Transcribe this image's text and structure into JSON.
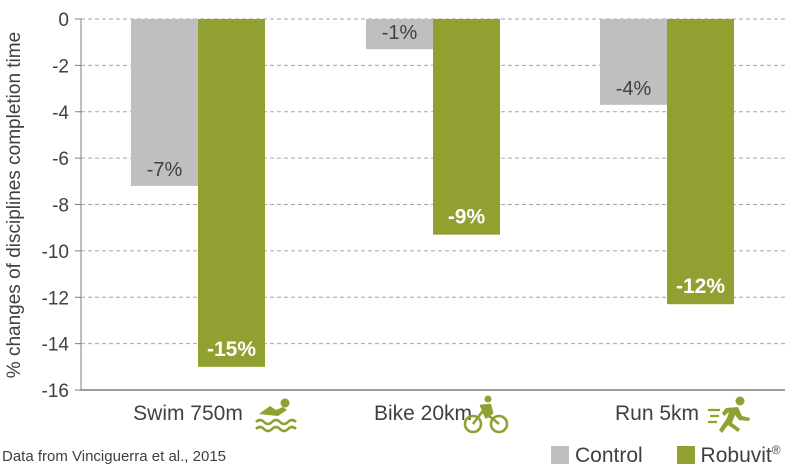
{
  "chart_data": {
    "type": "bar",
    "ylabel": "% changes of disciplines completion time",
    "ylim": [
      -16,
      0
    ],
    "yticks": [
      0,
      -2,
      -4,
      -6,
      -8,
      -10,
      -12,
      -14,
      -16
    ],
    "grid": true,
    "categories": [
      "Swim 750m",
      "Bike 20km",
      "Run 5km"
    ],
    "category_icons": [
      "swimmer-icon",
      "cyclist-icon",
      "runner-icon"
    ],
    "series": [
      {
        "name": "Control",
        "color": "#bfbfbf",
        "values": [
          -7.2,
          -1.3,
          -3.7
        ],
        "labels": [
          "-7%",
          "-1%",
          "-4%"
        ]
      },
      {
        "name": "Robuvit",
        "name_suffix": "®",
        "color": "#92a032",
        "values": [
          -15.0,
          -9.3,
          -12.3
        ],
        "labels": [
          "-15%",
          "-9%",
          "-12%"
        ]
      }
    ],
    "legend_position": "bottom-right"
  },
  "footer": {
    "source": "Data from Vinciguerra et al., 2015"
  }
}
